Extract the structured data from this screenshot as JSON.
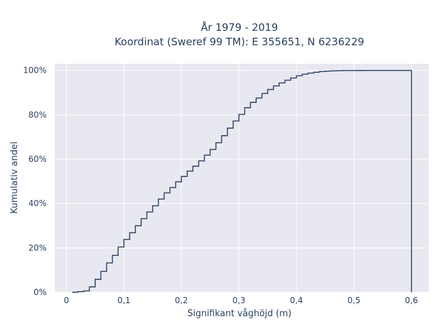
{
  "chart_data": {
    "type": "line",
    "line_shape": "step",
    "title": "År 1979 - 2019",
    "subtitle": "Koordinat (Sweref 99 TM): E 355651, N 6236229",
    "xlabel": "Signifikant våghöjd (m)",
    "ylabel": "Kumulativ andel",
    "xlim": [
      -0.02,
      0.63
    ],
    "ylim": [
      0,
      1.03
    ],
    "xticks": [
      0,
      0.1,
      0.2,
      0.3,
      0.4,
      0.5,
      0.6
    ],
    "xtick_labels": [
      "0",
      "0,1",
      "0,2",
      "0,3",
      "0,4",
      "0,5",
      "0,6"
    ],
    "yticks": [
      0,
      0.2,
      0.4,
      0.6,
      0.8,
      1.0
    ],
    "ytick_labels": [
      "0%",
      "20%",
      "40%",
      "60%",
      "80%",
      "100%"
    ],
    "grid": true,
    "plot_background": "#e8e8f0",
    "grid_color": "#ffffff",
    "line_color": "#2a3f5f",
    "series": [
      {
        "x": [
          0.01,
          0.02,
          0.03,
          0.04,
          0.05,
          0.06,
          0.07,
          0.08,
          0.09,
          0.1,
          0.11,
          0.12,
          0.13,
          0.14,
          0.15,
          0.16,
          0.17,
          0.18,
          0.19,
          0.2,
          0.21,
          0.22,
          0.23,
          0.24,
          0.25,
          0.26,
          0.27,
          0.28,
          0.29,
          0.3,
          0.31,
          0.32,
          0.33,
          0.34,
          0.35,
          0.36,
          0.37,
          0.38,
          0.39,
          0.4,
          0.41,
          0.42,
          0.43,
          0.44,
          0.45,
          0.46,
          0.47,
          0.48,
          0.5,
          0.52,
          0.55,
          0.6,
          0.6
        ],
        "y": [
          0.0,
          0.002,
          0.006,
          0.024,
          0.058,
          0.094,
          0.132,
          0.166,
          0.204,
          0.238,
          0.268,
          0.3,
          0.332,
          0.362,
          0.39,
          0.42,
          0.448,
          0.472,
          0.498,
          0.522,
          0.546,
          0.568,
          0.592,
          0.618,
          0.644,
          0.674,
          0.706,
          0.74,
          0.772,
          0.802,
          0.832,
          0.856,
          0.876,
          0.896,
          0.914,
          0.93,
          0.944,
          0.956,
          0.966,
          0.976,
          0.983,
          0.988,
          0.992,
          0.995,
          0.997,
          0.998,
          0.999,
          0.9995,
          0.9998,
          0.9999,
          1.0,
          1.0,
          0.0
        ]
      }
    ]
  }
}
